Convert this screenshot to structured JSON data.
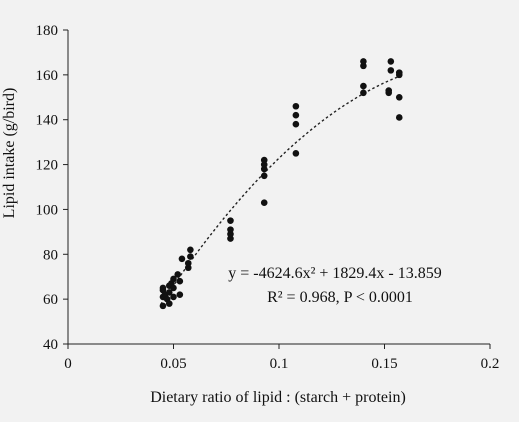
{
  "chart_data": {
    "type": "scatter",
    "title": "",
    "xlabel": "Dietary ratio of lipid : (starch + protein)",
    "ylabel": "Lipid intake (g/bird)",
    "xlim": [
      0,
      0.2
    ],
    "ylim": [
      40,
      180
    ],
    "xticks": [
      0,
      0.05,
      0.1,
      0.15,
      0.2
    ],
    "xtick_labels": [
      "0",
      "0.05",
      "0.1",
      "0.15",
      "0.2"
    ],
    "yticks": [
      40,
      60,
      80,
      100,
      120,
      140,
      160,
      180
    ],
    "ytick_labels": [
      "40",
      "60",
      "80",
      "100",
      "120",
      "140",
      "160",
      "180"
    ],
    "grid": false,
    "legend": "none",
    "marker_color": "#111111",
    "points": [
      {
        "x": 0.045,
        "y": 57
      },
      {
        "x": 0.045,
        "y": 61
      },
      {
        "x": 0.045,
        "y": 64
      },
      {
        "x": 0.045,
        "y": 65
      },
      {
        "x": 0.046,
        "y": 62
      },
      {
        "x": 0.047,
        "y": 60
      },
      {
        "x": 0.048,
        "y": 66
      },
      {
        "x": 0.048,
        "y": 58
      },
      {
        "x": 0.048,
        "y": 63
      },
      {
        "x": 0.049,
        "y": 67
      },
      {
        "x": 0.05,
        "y": 61
      },
      {
        "x": 0.05,
        "y": 65
      },
      {
        "x": 0.05,
        "y": 69
      },
      {
        "x": 0.052,
        "y": 71
      },
      {
        "x": 0.053,
        "y": 62
      },
      {
        "x": 0.053,
        "y": 68
      },
      {
        "x": 0.054,
        "y": 78
      },
      {
        "x": 0.057,
        "y": 74
      },
      {
        "x": 0.057,
        "y": 76
      },
      {
        "x": 0.058,
        "y": 79
      },
      {
        "x": 0.058,
        "y": 82
      },
      {
        "x": 0.077,
        "y": 87
      },
      {
        "x": 0.077,
        "y": 89
      },
      {
        "x": 0.077,
        "y": 91
      },
      {
        "x": 0.077,
        "y": 95
      },
      {
        "x": 0.093,
        "y": 103
      },
      {
        "x": 0.093,
        "y": 115
      },
      {
        "x": 0.093,
        "y": 118
      },
      {
        "x": 0.093,
        "y": 120
      },
      {
        "x": 0.093,
        "y": 122
      },
      {
        "x": 0.108,
        "y": 125
      },
      {
        "x": 0.108,
        "y": 138
      },
      {
        "x": 0.108,
        "y": 142
      },
      {
        "x": 0.108,
        "y": 146
      },
      {
        "x": 0.14,
        "y": 152
      },
      {
        "x": 0.14,
        "y": 155
      },
      {
        "x": 0.14,
        "y": 164
      },
      {
        "x": 0.14,
        "y": 166
      },
      {
        "x": 0.152,
        "y": 152
      },
      {
        "x": 0.152,
        "y": 153
      },
      {
        "x": 0.153,
        "y": 162
      },
      {
        "x": 0.153,
        "y": 166
      },
      {
        "x": 0.157,
        "y": 141
      },
      {
        "x": 0.157,
        "y": 150
      },
      {
        "x": 0.157,
        "y": 160
      },
      {
        "x": 0.157,
        "y": 161
      }
    ],
    "trendline": {
      "type": "polynomial-2",
      "style": "dotted",
      "coefficients": [
        -4624.6,
        1829.4,
        -13.859
      ],
      "x_range": [
        0.044,
        0.158
      ]
    },
    "annotations": [
      "y = -4624.6x² + 1829.4x - 13.859",
      "R² = 0.968, P < 0.0001"
    ]
  }
}
